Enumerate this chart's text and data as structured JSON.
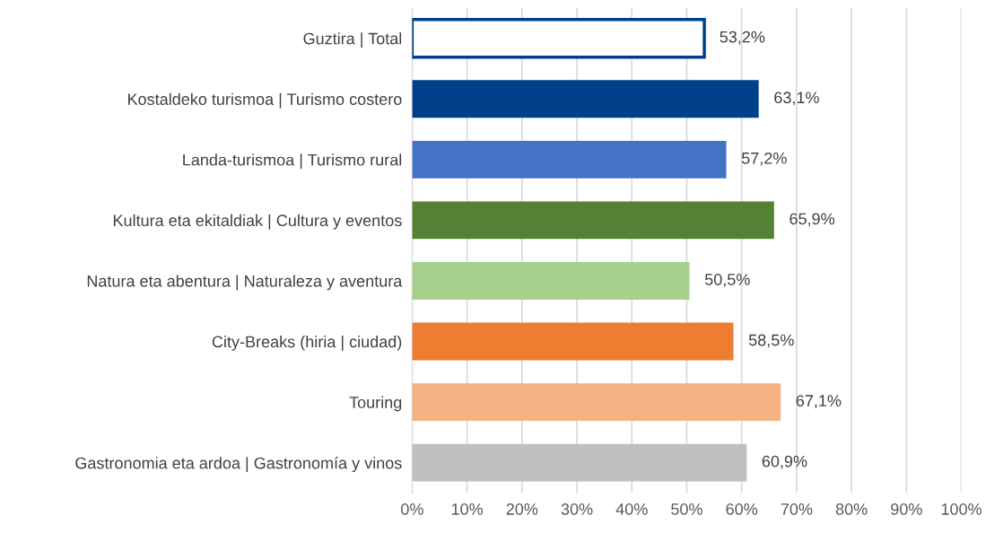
{
  "chart_data": {
    "type": "bar",
    "orientation": "horizontal",
    "categories": [
      "Guztira | Total",
      "Kostaldeko turismoa | Turismo costero",
      "Landa-turismoa | Turismo rural",
      "Kultura eta ekitaldiak | Cultura y eventos",
      "Natura eta abentura | Naturaleza y aventura",
      "City-Breaks (hiria | ciudad)",
      "Touring",
      "Gastronomia eta ardoa | Gastronomía y vinos"
    ],
    "values": [
      53.2,
      63.1,
      57.2,
      65.9,
      50.5,
      58.5,
      67.1,
      60.9
    ],
    "value_labels": [
      "53,2%",
      "63,1%",
      "57,2%",
      "65,9%",
      "50,5%",
      "58,5%",
      "67,1%",
      "60,9%"
    ],
    "colors": [
      "#ffffff",
      "#003f8a",
      "#4472c4",
      "#548235",
      "#a9d18e",
      "#ed7d31",
      "#f4b183",
      "#bfbfbf"
    ],
    "xlim": [
      0,
      100
    ],
    "xticks": [
      {
        "value": 0,
        "label": "0%"
      },
      {
        "value": 10,
        "label": "10%"
      },
      {
        "value": 20,
        "label": "20%"
      },
      {
        "value": 30,
        "label": "30%"
      },
      {
        "value": 40,
        "label": "40%"
      },
      {
        "value": 50,
        "label": "50%"
      },
      {
        "value": 60,
        "label": "60%"
      },
      {
        "value": 70,
        "label": "70%"
      },
      {
        "value": 80,
        "label": "80%"
      },
      {
        "value": 90,
        "label": "90%"
      },
      {
        "value": 100,
        "label": "100%"
      }
    ],
    "grid": "x",
    "legend": false
  }
}
